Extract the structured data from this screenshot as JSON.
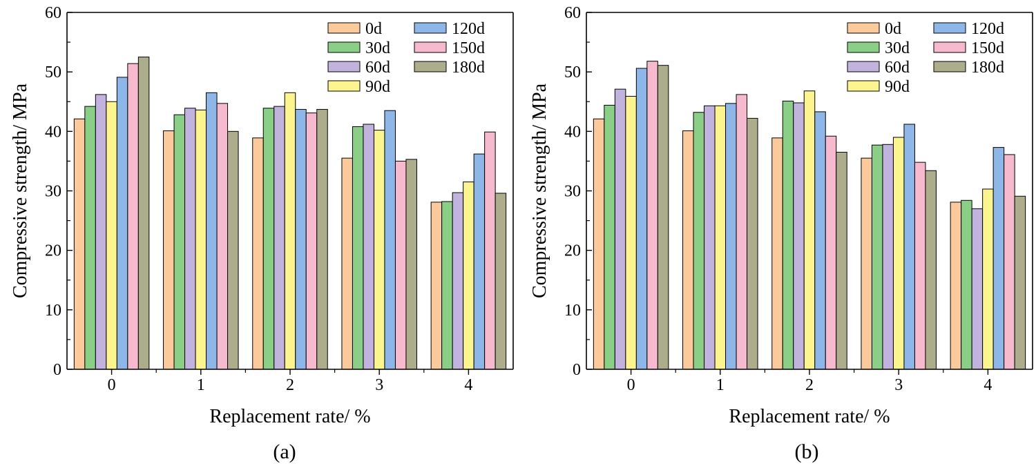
{
  "chart_data": [
    {
      "type": "bar",
      "panel_label": "(a)",
      "xlabel": "Replacement rate/ %",
      "ylabel": "Compressive strength/ MPa",
      "ylim": [
        0,
        60
      ],
      "yticks": [
        0,
        10,
        20,
        30,
        40,
        50,
        60
      ],
      "categories": [
        "0",
        "1",
        "2",
        "3",
        "4"
      ],
      "grid": false,
      "legend": "top-right",
      "series": [
        {
          "name": "0d",
          "color": "#FBC99A",
          "values": [
            42.1,
            40.1,
            38.9,
            35.5,
            28.1
          ]
        },
        {
          "name": "30d",
          "color": "#89CF85",
          "values": [
            44.2,
            42.8,
            43.9,
            40.8,
            28.2
          ]
        },
        {
          "name": "60d",
          "color": "#C1B3DE",
          "values": [
            46.2,
            43.9,
            44.2,
            41.2,
            29.7
          ]
        },
        {
          "name": "90d",
          "color": "#FCF58E",
          "values": [
            45.0,
            43.6,
            46.5,
            40.2,
            31.5
          ]
        },
        {
          "name": "120d",
          "color": "#8DB7E8",
          "values": [
            49.1,
            46.5,
            43.7,
            43.5,
            36.2
          ]
        },
        {
          "name": "150d",
          "color": "#F7B9CE",
          "values": [
            51.4,
            44.7,
            43.1,
            35.0,
            39.9
          ]
        },
        {
          "name": "180d",
          "color": "#ADAD8B",
          "values": [
            52.5,
            40.0,
            43.7,
            35.3,
            29.6
          ]
        }
      ]
    },
    {
      "type": "bar",
      "panel_label": "(b)",
      "xlabel": "Replacement rate/ %",
      "ylabel": "Compressive strength/ MPa",
      "ylim": [
        0,
        60
      ],
      "yticks": [
        0,
        10,
        20,
        30,
        40,
        50,
        60
      ],
      "categories": [
        "0",
        "1",
        "2",
        "3",
        "4"
      ],
      "grid": false,
      "legend": "top-right",
      "series": [
        {
          "name": "0d",
          "color": "#FBC99A",
          "values": [
            42.1,
            40.1,
            38.9,
            35.5,
            28.1
          ]
        },
        {
          "name": "30d",
          "color": "#89CF85",
          "values": [
            44.4,
            43.2,
            45.1,
            37.7,
            28.4
          ]
        },
        {
          "name": "60d",
          "color": "#C1B3DE",
          "values": [
            47.1,
            44.3,
            44.8,
            37.8,
            27.0
          ]
        },
        {
          "name": "90d",
          "color": "#FCF58E",
          "values": [
            45.9,
            44.3,
            46.8,
            39.0,
            30.3
          ]
        },
        {
          "name": "120d",
          "color": "#8DB7E8",
          "values": [
            50.6,
            44.7,
            43.3,
            41.2,
            37.3
          ]
        },
        {
          "name": "150d",
          "color": "#F7B9CE",
          "values": [
            51.8,
            46.2,
            39.2,
            34.8,
            36.1
          ]
        },
        {
          "name": "180d",
          "color": "#ADAD8B",
          "values": [
            51.1,
            42.2,
            36.5,
            33.4,
            29.1
          ]
        }
      ]
    }
  ]
}
